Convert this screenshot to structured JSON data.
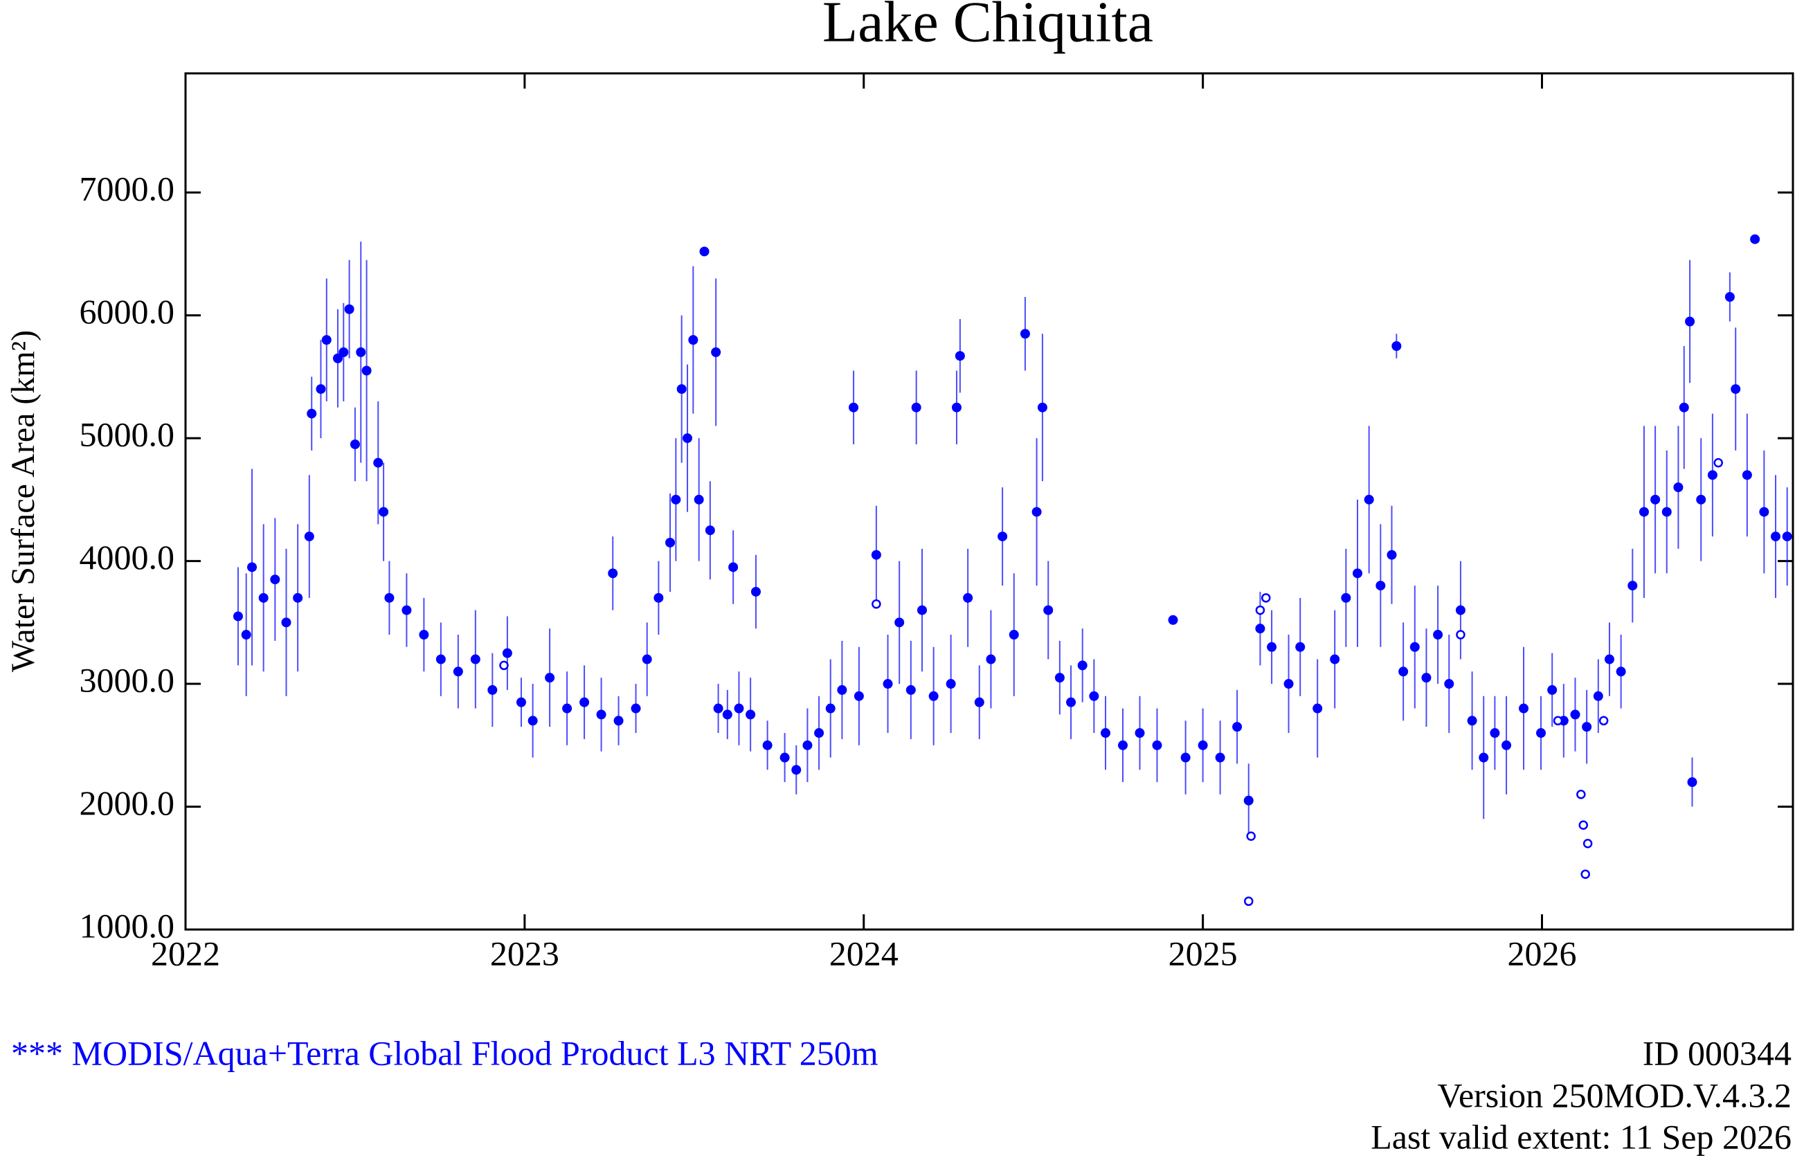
{
  "chart_data": {
    "type": "scatter",
    "title": "Lake Chiquita",
    "y_label": "Water Surface Area (km²)",
    "xlim": [
      2022,
      2026.74
    ],
    "xticks": [
      2022,
      2023,
      2024,
      2025,
      2026
    ],
    "ylim": [
      1000,
      7970
    ],
    "yticks": [
      {
        "value": 1000,
        "label": "1000.0"
      },
      {
        "value": 2000,
        "label": "2000.0"
      },
      {
        "value": 3000,
        "label": "3000.0"
      },
      {
        "value": 4000,
        "label": "4000.0"
      },
      {
        "value": 5000,
        "label": "5000.0"
      },
      {
        "value": 6000,
        "label": "6000.0"
      },
      {
        "value": 7000,
        "label": "7000.0"
      }
    ],
    "series": [
      {
        "color": "#0000ff",
        "marker": "filled",
        "x": [
          2022.155,
          2022.179,
          2022.196,
          2022.23,
          2022.264,
          2022.297,
          2022.331,
          2022.365,
          2022.372,
          2022.399,
          2022.416,
          2022.449,
          2022.466,
          2022.483,
          2022.5,
          2022.517,
          2022.534,
          2022.568,
          2022.584,
          2022.601,
          2022.652,
          2022.703,
          2022.753,
          2022.804,
          2022.855,
          2022.905,
          2022.949,
          2022.99,
          2023.024,
          2023.074,
          2023.125,
          2023.176,
          2023.226,
          2023.26,
          2023.277,
          2023.328,
          2023.361,
          2023.395,
          2023.429,
          2023.446,
          2023.463,
          2023.48,
          2023.497,
          2023.514,
          2023.53,
          2023.547,
          2023.564,
          2023.571,
          2023.598,
          2023.615,
          2023.632,
          2023.666,
          2023.682,
          2023.716,
          2023.767,
          2023.801,
          2023.834,
          2023.868,
          2023.902,
          2023.936,
          2023.97,
          2023.986,
          2024.037,
          2024.071,
          2024.105,
          2024.139,
          2024.155,
          2024.172,
          2024.206,
          2024.257,
          2024.274,
          2024.284,
          2024.307,
          2024.341,
          2024.375,
          2024.409,
          2024.443,
          2024.476,
          2024.51,
          2024.527,
          2024.544,
          2024.578,
          2024.611,
          2024.645,
          2024.679,
          2024.713,
          2024.764,
          2024.814,
          2024.865,
          2024.912,
          2024.949,
          2025.0,
          2025.051,
          2025.101,
          2025.135,
          2025.169,
          2025.203,
          2025.253,
          2025.287,
          2025.338,
          2025.389,
          2025.422,
          2025.456,
          2025.49,
          2025.524,
          2025.557,
          2025.571,
          2025.591,
          2025.625,
          2025.659,
          2025.693,
          2025.726,
          2025.76,
          2025.794,
          2025.828,
          2025.861,
          2025.895,
          2025.946,
          2025.997,
          2026.03,
          2026.064,
          2026.098,
          2026.132,
          2026.166,
          2026.199,
          2026.233,
          2026.267,
          2026.301,
          2026.334,
          2026.368,
          2026.402,
          2026.419,
          2026.436,
          2026.443,
          2026.469,
          2026.503,
          2026.554,
          2026.571,
          2026.605,
          2026.628,
          2026.655,
          2026.689,
          2026.723
        ],
        "values": [
          3550,
          3400,
          3950,
          3700,
          3850,
          3500,
          3700,
          4200,
          5200,
          5400,
          5800,
          5650,
          5700,
          6050,
          4950,
          5700,
          5550,
          4800,
          4400,
          3700,
          3600,
          3400,
          3200,
          3100,
          3200,
          2950,
          3250,
          2850,
          2700,
          3050,
          2800,
          2850,
          2750,
          3900,
          2700,
          2800,
          3200,
          3700,
          4150,
          4500,
          5400,
          5000,
          5800,
          4500,
          6520,
          4250,
          5700,
          2800,
          2750,
          3950,
          2800,
          2750,
          3750,
          2500,
          2400,
          2300,
          2500,
          2600,
          2800,
          2950,
          5250,
          2900,
          4050,
          3000,
          3500,
          2950,
          5250,
          3600,
          2900,
          3000,
          5250,
          5670,
          3700,
          2850,
          3200,
          4200,
          3400,
          5850,
          4400,
          5250,
          3600,
          3050,
          2850,
          3150,
          2900,
          2600,
          2500,
          2600,
          2500,
          3520,
          2400,
          2500,
          2400,
          2650,
          2050,
          3450,
          3300,
          3000,
          3300,
          2800,
          3200,
          3700,
          3900,
          4500,
          3800,
          4050,
          5750,
          3100,
          3300,
          3050,
          3400,
          3000,
          3600,
          2700,
          2400,
          2600,
          2500,
          2800,
          2600,
          2950,
          2700,
          2750,
          2650,
          2900,
          3200,
          3100,
          3800,
          4400,
          4500,
          4400,
          4600,
          5250,
          5950,
          2200,
          4500,
          4700,
          6150,
          5400,
          4700,
          6620,
          4400,
          4200,
          4200
        ],
        "errors": [
          400,
          500,
          800,
          600,
          500,
          600,
          600,
          500,
          300,
          400,
          500,
          400,
          400,
          400,
          300,
          900,
          900,
          500,
          400,
          300,
          300,
          300,
          300,
          300,
          400,
          300,
          300,
          200,
          300,
          400,
          300,
          300,
          300,
          300,
          200,
          200,
          300,
          300,
          400,
          500,
          600,
          600,
          600,
          500,
          0,
          400,
          600,
          200,
          200,
          300,
          300,
          300,
          300,
          200,
          200,
          200,
          300,
          300,
          400,
          400,
          300,
          400,
          400,
          400,
          500,
          400,
          300,
          500,
          400,
          400,
          300,
          300,
          400,
          300,
          400,
          400,
          500,
          300,
          600,
          600,
          400,
          300,
          300,
          300,
          300,
          300,
          300,
          300,
          300,
          0,
          300,
          300,
          300,
          300,
          300,
          300,
          300,
          400,
          400,
          400,
          400,
          400,
          600,
          600,
          500,
          400,
          100,
          400,
          500,
          400,
          400,
          400,
          400,
          400,
          500,
          300,
          400,
          500,
          300,
          300,
          300,
          300,
          300,
          300,
          300,
          300,
          300,
          700,
          600,
          500,
          500,
          500,
          500,
          200,
          500,
          500,
          200,
          500,
          500,
          0,
          500,
          500,
          400
        ]
      },
      {
        "color": "#0000ff",
        "marker": "open",
        "x": [
          2022.939,
          2024.037,
          2025.135,
          2025.142,
          2025.169,
          2025.186,
          2025.76,
          2026.047,
          2026.115,
          2026.122,
          2026.128,
          2026.135,
          2026.182,
          2026.52
        ],
        "values": [
          3150,
          3650,
          1230,
          1760,
          3600,
          3700,
          3400,
          2700,
          2100,
          1850,
          1450,
          1700,
          2700,
          4800
        ]
      }
    ]
  },
  "footer": {
    "product": "*** MODIS/Aqua+Terra Global Flood Product L3 NRT 250m",
    "id": "ID 000344",
    "version": "Version 250MOD.V.4.3.2",
    "last_valid": "Last valid extent: 11 Sep 2026"
  }
}
